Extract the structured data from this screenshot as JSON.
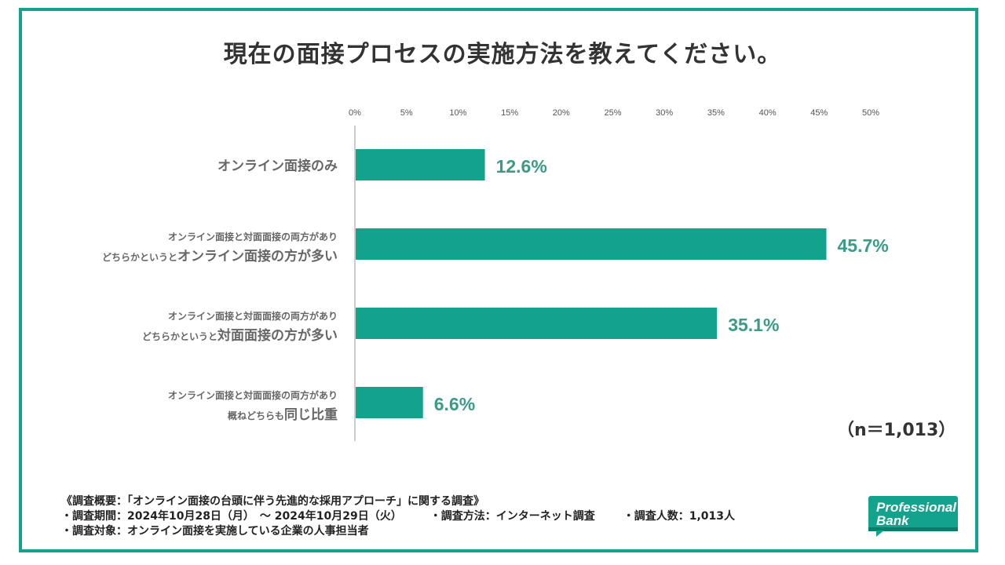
{
  "title": "現在の面接プロセスの実施方法を教えてください。",
  "n_label": "（n＝1,013）",
  "colors": {
    "accent": "#13a38d",
    "bar": "#13a38d",
    "value_text": "#3a9b86",
    "label_text": "#666666",
    "frame": "#13a38d"
  },
  "chart_data": {
    "type": "bar",
    "orientation": "horizontal",
    "title": "現在の面接プロセスの実施方法を教えてください。",
    "xlim": [
      0,
      50
    ],
    "x_ticks": [
      "0%",
      "5%",
      "10%",
      "15%",
      "20%",
      "25%",
      "30%",
      "35%",
      "40%",
      "45%",
      "50%"
    ],
    "grid": false,
    "categories": [
      {
        "line1": "",
        "pre": "",
        "main": "オンライン面接のみ"
      },
      {
        "line1": "オンライン面接と対面面接の両方があり",
        "pre": "どちらかというと",
        "main": "オンライン面接の方が多い"
      },
      {
        "line1": "オンライン面接と対面面接の両方があり",
        "pre": "どちらかというと",
        "main": "対面面接の方が多い"
      },
      {
        "line1": "オンライン面接と対面面接の両方があり",
        "pre": "概ねどちらも",
        "main": "同じ比重"
      }
    ],
    "values": [
      12.6,
      45.7,
      35.1,
      6.6
    ],
    "value_labels": [
      "12.6%",
      "45.7%",
      "35.1%",
      "6.6%"
    ]
  },
  "footer": {
    "survey": "《調査概要：「オンライン面接の台頭に伴う先進的な採用アプローチ」に関する調査》",
    "period": "・調査期間：2024年10月28日（月）　～ 2024年10月29日（火）",
    "method": "・調査方法：インターネット調査",
    "count": "・調査人数：1,013人",
    "target": "・調査対象：オンライン面接を実施している企業の人事担当者"
  },
  "logo": {
    "line1": "Professional",
    "line2": "Bank",
    "color": "#13a38d"
  }
}
